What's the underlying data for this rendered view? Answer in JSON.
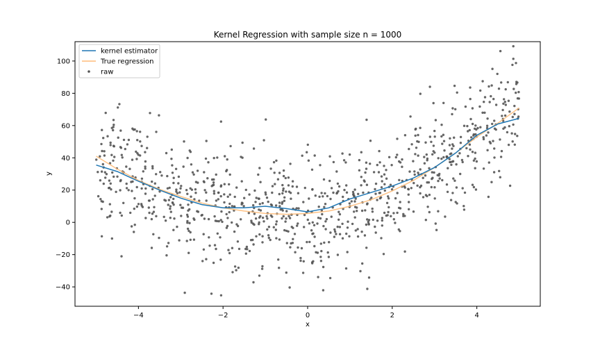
{
  "chart_data": {
    "type": "scatter",
    "title": "Kernel Regression with sample size n = 1000",
    "xlabel": "x",
    "ylabel": "y",
    "xlim": [
      -5.5,
      5.5
    ],
    "ylim": [
      -52,
      112
    ],
    "xticks": [
      -4,
      -2,
      0,
      2,
      4
    ],
    "yticks": [
      -40,
      -20,
      0,
      20,
      40,
      60,
      80,
      100
    ],
    "grid": false,
    "legend_position": "top-left",
    "series": [
      {
        "name": "kernel estimator",
        "kind": "line",
        "color": "#1f77b4",
        "x": [
          -5.0,
          -4.5,
          -4.0,
          -3.5,
          -3.0,
          -2.5,
          -2.0,
          -1.5,
          -1.0,
          -0.5,
          0.0,
          0.5,
          1.0,
          1.5,
          2.0,
          2.5,
          3.0,
          3.5,
          4.0,
          4.5,
          5.0
        ],
        "y": [
          35.5,
          31.5,
          25.5,
          20.0,
          15.0,
          11.0,
          9.0,
          9.0,
          10.0,
          8.5,
          6.5,
          9.0,
          14.5,
          18.5,
          22.5,
          27.5,
          34.0,
          43.0,
          54.0,
          61.0,
          64.5
        ]
      },
      {
        "name": "True regression",
        "kind": "line",
        "color": "#ffbb78",
        "x": [
          -5.0,
          -4.5,
          -4.0,
          -3.5,
          -3.0,
          -2.5,
          -2.0,
          -1.5,
          -1.0,
          -0.5,
          0.0,
          0.5,
          1.0,
          1.5,
          2.0,
          2.5,
          3.0,
          3.5,
          4.0,
          4.5,
          5.0
        ],
        "y": [
          41.0,
          33.0,
          26.0,
          20.5,
          16.0,
          12.0,
          9.0,
          7.0,
          5.5,
          5.0,
          5.5,
          7.0,
          10.0,
          14.0,
          19.5,
          26.0,
          34.0,
          43.0,
          53.0,
          61.5,
          71.0
        ]
      },
      {
        "name": "raw",
        "kind": "scatter",
        "color": "#555555",
        "n": 1000,
        "noise_sd": 18
      }
    ]
  }
}
